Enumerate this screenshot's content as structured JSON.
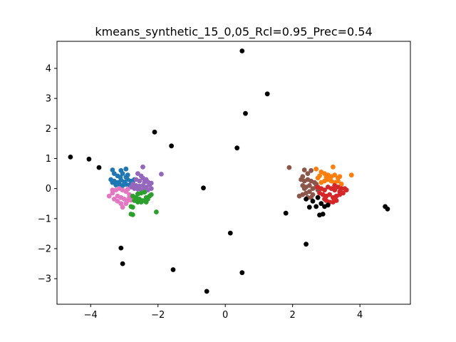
{
  "chart_data": {
    "type": "scatter",
    "title": "kmeans_synthetic_15_0,05_Rcl=0.95_Prec=0.54",
    "xlabel": "",
    "ylabel": "",
    "xlim": [
      -5.0,
      5.5
    ],
    "ylim": [
      -3.85,
      4.9
    ],
    "xticks": [
      -4,
      -2,
      0,
      2,
      4
    ],
    "xtick_labels": [
      "−4",
      "−2",
      "0",
      "2",
      "4"
    ],
    "yticks": [
      -3,
      -2,
      -1,
      0,
      1,
      2,
      3,
      4
    ],
    "ytick_labels": [
      "−3",
      "−2",
      "−1",
      "0",
      "1",
      "2",
      "3",
      "4"
    ],
    "grid": false,
    "legend": "none",
    "series": [
      {
        "color": "#1f77b4",
        "points": [
          [
            -3.35,
            0.62
          ],
          [
            -3.3,
            0.5
          ],
          [
            -3.2,
            0.42
          ],
          [
            -3.1,
            0.6
          ],
          [
            -3.05,
            0.5
          ],
          [
            -2.95,
            0.65
          ],
          [
            -2.9,
            0.45
          ],
          [
            -3.4,
            0.3
          ],
          [
            -3.3,
            0.25
          ],
          [
            -3.2,
            0.2
          ],
          [
            -3.1,
            0.28
          ],
          [
            -3.0,
            0.22
          ],
          [
            -2.9,
            0.3
          ],
          [
            -2.8,
            0.25
          ],
          [
            -2.7,
            0.3
          ],
          [
            -3.25,
            0.12
          ],
          [
            -3.15,
            0.15
          ],
          [
            -3.05,
            0.1
          ],
          [
            -2.95,
            0.14
          ],
          [
            -2.85,
            0.12
          ],
          [
            -2.75,
            0.2
          ],
          [
            -3.35,
            0.2
          ],
          [
            -2.95,
            0.38
          ],
          [
            -3.12,
            0.38
          ]
        ]
      },
      {
        "color": "#9467bd",
        "points": [
          [
            -2.45,
            0.72
          ],
          [
            -2.6,
            0.5
          ],
          [
            -2.5,
            0.42
          ],
          [
            -2.45,
            0.35
          ],
          [
            -2.35,
            0.3
          ],
          [
            -2.3,
            0.22
          ],
          [
            -2.55,
            0.25
          ],
          [
            -2.65,
            0.3
          ],
          [
            -2.75,
            0.15
          ],
          [
            -2.65,
            0.1
          ],
          [
            -2.55,
            0.08
          ],
          [
            -2.45,
            0.1
          ],
          [
            -2.35,
            0.05
          ],
          [
            -2.25,
            0.12
          ],
          [
            -2.2,
            0.0
          ],
          [
            -2.3,
            -0.05
          ],
          [
            -2.4,
            -0.02
          ],
          [
            -2.5,
            -0.05
          ],
          [
            -2.6,
            -0.02
          ],
          [
            -2.7,
            0.0
          ],
          [
            -2.8,
            0.05
          ],
          [
            -1.9,
            0.48
          ],
          [
            -2.2,
            0.18
          ],
          [
            -2.4,
            0.22
          ]
        ]
      },
      {
        "color": "#e377c2",
        "points": [
          [
            -3.45,
            -0.25
          ],
          [
            -3.35,
            -0.15
          ],
          [
            -3.25,
            -0.05
          ],
          [
            -3.15,
            0.0
          ],
          [
            -3.05,
            -0.05
          ],
          [
            -2.95,
            -0.1
          ],
          [
            -2.85,
            -0.2
          ],
          [
            -3.2,
            -0.25
          ],
          [
            -3.1,
            -0.3
          ],
          [
            -3.0,
            -0.35
          ],
          [
            -2.9,
            -0.4
          ],
          [
            -2.8,
            -0.38
          ],
          [
            -3.3,
            -0.35
          ],
          [
            -3.2,
            -0.42
          ],
          [
            -3.1,
            -0.5
          ],
          [
            -2.95,
            -0.5
          ],
          [
            -3.05,
            -0.62
          ],
          [
            -2.85,
            -0.3
          ],
          [
            -3.35,
            -0.05
          ],
          [
            -2.9,
            -0.02
          ]
        ]
      },
      {
        "color": "#2ca02c",
        "points": [
          [
            -2.75,
            -0.25
          ],
          [
            -2.65,
            -0.3
          ],
          [
            -2.55,
            -0.35
          ],
          [
            -2.45,
            -0.4
          ],
          [
            -2.35,
            -0.3
          ],
          [
            -2.25,
            -0.25
          ],
          [
            -2.2,
            -0.2
          ],
          [
            -2.6,
            -0.18
          ],
          [
            -2.5,
            -0.15
          ],
          [
            -2.4,
            -0.12
          ],
          [
            -2.7,
            -0.4
          ],
          [
            -2.6,
            -0.45
          ],
          [
            -2.5,
            -0.45
          ],
          [
            -2.35,
            -0.45
          ],
          [
            -2.8,
            -0.6
          ],
          [
            -2.75,
            -0.62
          ],
          [
            -2.8,
            -0.85
          ],
          [
            -2.75,
            -0.87
          ],
          [
            -2.05,
            -0.78
          ],
          [
            -2.3,
            -0.35
          ]
        ]
      },
      {
        "color": "#8c564b",
        "points": [
          [
            1.9,
            0.7
          ],
          [
            2.35,
            0.62
          ],
          [
            2.55,
            0.6
          ],
          [
            2.45,
            0.5
          ],
          [
            2.3,
            0.4
          ],
          [
            2.25,
            0.3
          ],
          [
            2.35,
            0.25
          ],
          [
            2.45,
            0.3
          ],
          [
            2.55,
            0.25
          ],
          [
            2.65,
            0.2
          ],
          [
            2.3,
            0.1
          ],
          [
            2.4,
            0.05
          ],
          [
            2.5,
            0.1
          ],
          [
            2.6,
            0.0
          ],
          [
            2.7,
            0.05
          ],
          [
            2.75,
            -0.05
          ],
          [
            2.5,
            -0.1
          ],
          [
            2.4,
            -0.15
          ],
          [
            2.3,
            -0.2
          ],
          [
            2.2,
            -0.25
          ],
          [
            2.6,
            -0.2
          ],
          [
            2.55,
            -0.3
          ],
          [
            2.45,
            -0.3
          ],
          [
            2.7,
            0.15
          ],
          [
            2.35,
            0.0
          ]
        ]
      },
      {
        "color": "#ff7f0e",
        "points": [
          [
            2.7,
            0.65
          ],
          [
            3.2,
            0.72
          ],
          [
            2.85,
            0.55
          ],
          [
            2.95,
            0.5
          ],
          [
            3.05,
            0.45
          ],
          [
            3.15,
            0.4
          ],
          [
            3.25,
            0.45
          ],
          [
            3.35,
            0.35
          ],
          [
            3.05,
            0.3
          ],
          [
            2.95,
            0.25
          ],
          [
            2.85,
            0.2
          ],
          [
            3.15,
            0.25
          ],
          [
            3.25,
            0.2
          ],
          [
            3.35,
            0.25
          ],
          [
            3.45,
            0.15
          ],
          [
            2.75,
            0.35
          ],
          [
            3.75,
            0.45
          ],
          [
            2.8,
            0.42
          ],
          [
            3.0,
            0.38
          ],
          [
            3.4,
            0.4
          ]
        ]
      },
      {
        "color": "#d62728",
        "points": [
          [
            2.75,
            0.05
          ],
          [
            2.85,
            0.0
          ],
          [
            2.95,
            -0.05
          ],
          [
            3.05,
            0.05
          ],
          [
            3.15,
            0.0
          ],
          [
            3.25,
            -0.05
          ],
          [
            3.35,
            0.05
          ],
          [
            3.45,
            0.0
          ],
          [
            3.55,
            0.0
          ],
          [
            2.8,
            -0.15
          ],
          [
            2.9,
            -0.2
          ],
          [
            3.0,
            -0.25
          ],
          [
            3.1,
            -0.2
          ],
          [
            3.2,
            -0.3
          ],
          [
            3.3,
            -0.25
          ],
          [
            3.4,
            -0.2
          ],
          [
            3.5,
            -0.15
          ],
          [
            3.6,
            -0.05
          ],
          [
            3.0,
            -0.4
          ],
          [
            3.1,
            -0.45
          ],
          [
            3.2,
            -0.45
          ],
          [
            3.3,
            -0.4
          ],
          [
            2.95,
            -0.35
          ],
          [
            3.25,
            0.1
          ],
          [
            3.4,
            -0.1
          ]
        ]
      },
      {
        "color": "#000000",
        "points": [
          [
            0.5,
            4.58
          ],
          [
            1.25,
            3.15
          ],
          [
            0.6,
            2.5
          ],
          [
            -2.1,
            1.88
          ],
          [
            -1.6,
            1.42
          ],
          [
            0.35,
            1.35
          ],
          [
            -4.6,
            1.05
          ],
          [
            -4.05,
            0.98
          ],
          [
            -3.75,
            0.7
          ],
          [
            -0.65,
            0.02
          ],
          [
            1.8,
            -0.82
          ],
          [
            0.15,
            -1.48
          ],
          [
            2.4,
            -1.85
          ],
          [
            -3.1,
            -1.98
          ],
          [
            -3.05,
            -2.5
          ],
          [
            -1.55,
            -2.7
          ],
          [
            0.5,
            -2.8
          ],
          [
            -0.55,
            -3.42
          ],
          [
            4.75,
            -0.6
          ],
          [
            4.82,
            -0.68
          ],
          [
            2.5,
            -0.62
          ],
          [
            2.85,
            -0.5
          ],
          [
            2.7,
            -0.6
          ],
          [
            2.8,
            -0.88
          ],
          [
            2.9,
            -0.85
          ],
          [
            2.6,
            -0.42
          ],
          [
            2.95,
            -0.6
          ],
          [
            2.4,
            -0.35
          ],
          [
            2.75,
            -0.3
          ],
          [
            3.05,
            -0.55
          ]
        ]
      }
    ]
  }
}
